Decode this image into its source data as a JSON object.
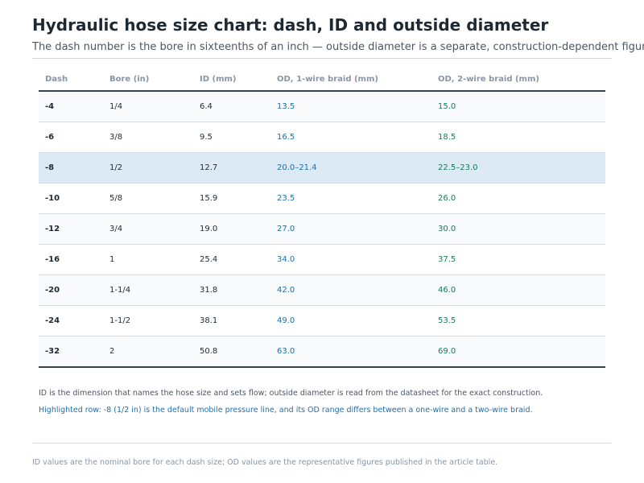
{
  "header": {
    "title": "Hydraulic hose size chart: dash, ID and outside diameter",
    "subtitle": "The dash number is the bore in sixteenths of an inch — outside diameter is a separate, construction-dependent figure."
  },
  "table": {
    "columns": [
      "Dash",
      "Bore (in)",
      "ID (mm)",
      "OD, 1-wire braid (mm)",
      "OD, 2-wire braid (mm)"
    ],
    "rows": [
      {
        "dash": "-4",
        "bore": "1/4",
        "id": "6.4",
        "od1": "13.5",
        "od2": "15.0"
      },
      {
        "dash": "-6",
        "bore": "3/8",
        "id": "9.5",
        "od1": "16.5",
        "od2": "18.5"
      },
      {
        "dash": "-8",
        "bore": "1/2",
        "id": "12.7",
        "od1": "20.0–21.4",
        "od2": "22.5–23.0"
      },
      {
        "dash": "-10",
        "bore": "5/8",
        "id": "15.9",
        "od1": "23.5",
        "od2": "26.0"
      },
      {
        "dash": "-12",
        "bore": "3/4",
        "id": "19.0",
        "od1": "27.0",
        "od2": "30.0"
      },
      {
        "dash": "-16",
        "bore": "1",
        "id": "25.4",
        "od1": "34.0",
        "od2": "37.5"
      },
      {
        "dash": "-20",
        "bore": "1-1/4",
        "id": "31.8",
        "od1": "42.0",
        "od2": "46.0"
      },
      {
        "dash": "-24",
        "bore": "1-1/2",
        "id": "38.1",
        "od1": "49.0",
        "od2": "53.5"
      },
      {
        "dash": "-32",
        "bore": "2",
        "id": "50.8",
        "od1": "63.0",
        "od2": "69.0"
      }
    ]
  },
  "notes": {
    "id_note": "ID is the dimension that names the hose size and sets flow; outside diameter is read from the datasheet for the exact construction.",
    "highlight_note": "Highlighted row: -8 (1/2 in) is the default mobile pressure line, and its OD range differs between a one-wire and a two-wire braid."
  },
  "footer": {
    "text": "ID values are the nominal bore for each dash size; OD values are the representative figures published in the article table."
  },
  "colors": {
    "highlight_row": "#dceaf6",
    "od_1wire": "#1f6fa8",
    "od_2wire": "#1a7a5a"
  }
}
